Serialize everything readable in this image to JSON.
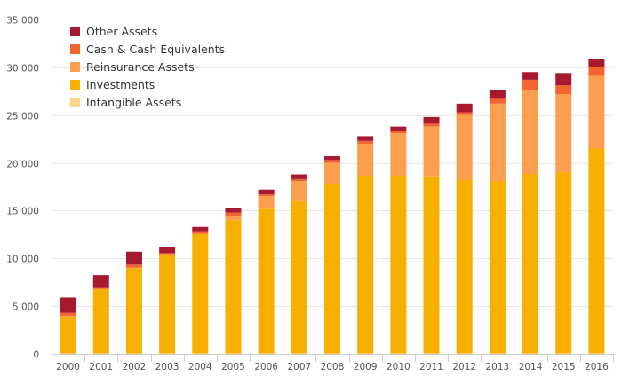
{
  "chart_data": {
    "type": "bar",
    "stacked": true,
    "title": "",
    "xlabel": "",
    "ylabel": "",
    "ylim": [
      0,
      35000
    ],
    "y_ticks": [
      0,
      5000,
      10000,
      15000,
      20000,
      25000,
      30000,
      35000
    ],
    "y_tick_labels": [
      "0",
      "5 000",
      "10 000",
      "15 000",
      "20 000",
      "25 000",
      "30 000",
      "35 000"
    ],
    "grid": true,
    "legend_position": "top-left",
    "categories": [
      "2000",
      "2001",
      "2002",
      "2003",
      "2004",
      "2005",
      "2006",
      "2007",
      "2008",
      "2009",
      "2010",
      "2011",
      "2012",
      "2013",
      "2014",
      "2015",
      "2016"
    ],
    "series": [
      {
        "name": "Intangible Assets",
        "color": "#fdd68a",
        "values": [
          50,
          50,
          50,
          50,
          50,
          50,
          50,
          50,
          50,
          50,
          50,
          50,
          50,
          50,
          50,
          50,
          50
        ]
      },
      {
        "name": "Investments",
        "color": "#f7b000",
        "values": [
          3850,
          6750,
          8900,
          10300,
          12500,
          13950,
          15150,
          15950,
          17750,
          18550,
          18550,
          18450,
          18150,
          18050,
          18750,
          18950,
          21450
        ]
      },
      {
        "name": "Reinsurance Assets",
        "color": "#fb9f4f",
        "values": [
          100,
          0,
          100,
          100,
          0,
          400,
          1300,
          2100,
          2200,
          3400,
          4500,
          5300,
          6800,
          8100,
          8800,
          8200,
          7600
        ]
      },
      {
        "name": "Cash & Cash Equivalents",
        "color": "#f26532",
        "values": [
          300,
          100,
          300,
          100,
          200,
          400,
          200,
          200,
          300,
          300,
          200,
          300,
          300,
          500,
          1100,
          900,
          900
        ]
      },
      {
        "name": "Other Assets",
        "color": "#a6192e",
        "values": [
          1600,
          1350,
          1350,
          650,
          550,
          500,
          500,
          500,
          400,
          500,
          500,
          700,
          900,
          900,
          800,
          1300,
          900
        ]
      }
    ],
    "legend_order": [
      "Other Assets",
      "Cash & Cash Equivalents",
      "Reinsurance Assets",
      "Investments",
      "Intangible Assets"
    ]
  }
}
